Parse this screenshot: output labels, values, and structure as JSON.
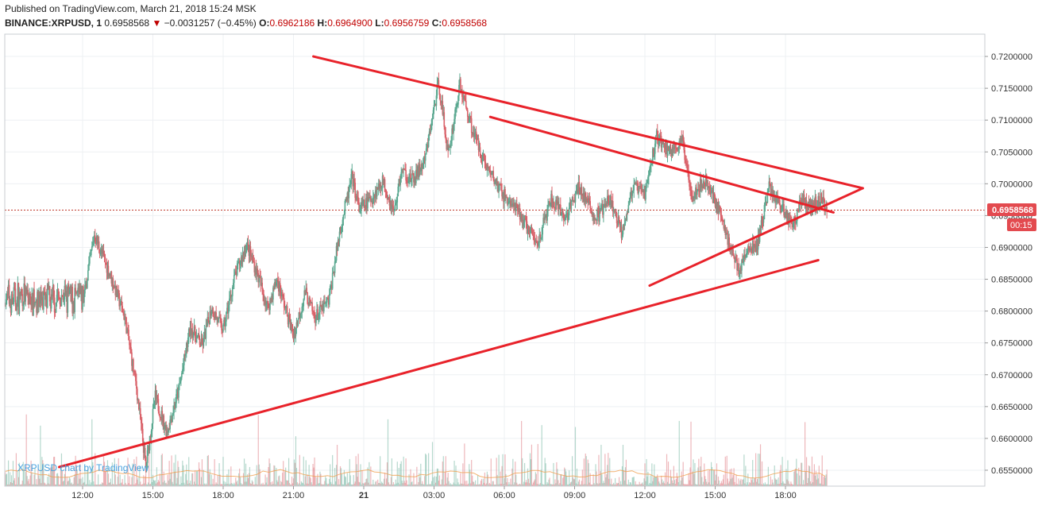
{
  "header": {
    "published": "Published on TradingView.com, March 21, 2018 15:24 MSK",
    "symbol": "BINANCE:XRPUSD, 1",
    "last": "0.6958568",
    "arrow": "▼",
    "change": "−0.0031257 (−0.45%)",
    "o_label": "O:",
    "o_value": "0.6962186",
    "h_label": "H:",
    "h_value": "0.6964900",
    "l_label": "L:",
    "l_value": "0.6956759",
    "c_label": "C:",
    "c_value": "0.6958568"
  },
  "watermark": "XRPUSD chart by TradingView",
  "price_tag": {
    "value": "0.6958568",
    "countdown": "00:15"
  },
  "colors": {
    "up": "#5aa890",
    "down": "#d96068",
    "trendline": "#e8222a",
    "grid": "#eef0f3",
    "price_line": "#c0392b",
    "tag_bg": "#e34a4f"
  },
  "chart_data": {
    "type": "candlestick",
    "ylim": [
      0.6525,
      0.7235
    ],
    "y_ticks": [
      "0.7200000",
      "0.7150000",
      "0.7100000",
      "0.7050000",
      "0.7000000",
      "0.6950000",
      "0.6900000",
      "0.6850000",
      "0.6800000",
      "0.6750000",
      "0.6700000",
      "0.6650000",
      "0.6600000",
      "0.6550000"
    ],
    "y_tick_values": [
      0.72,
      0.715,
      0.71,
      0.705,
      0.7,
      0.695,
      0.69,
      0.685,
      0.68,
      0.675,
      0.67,
      0.665,
      0.66,
      0.655
    ],
    "x_ticks": [
      "12:00",
      "15:00",
      "18:00",
      "21:00",
      "21",
      "03:00",
      "06:00",
      "09:00",
      "12:00",
      "15:00",
      "18:00"
    ],
    "price_path_hours": [
      0,
      0.5,
      1.2,
      1.8,
      2.3,
      2.7,
      3.1,
      3.6,
      4.1,
      4.6,
      5.1,
      5.5,
      6.0,
      6.5,
      7.0,
      7.4,
      7.9,
      8.3,
      9.0,
      9.5,
      9.9,
      10.5,
      11.0,
      11.5,
      11.8,
      12.3,
      12.8,
      13.3,
      13.6,
      14.1,
      14.6,
      15.2,
      15.6,
      16.1,
      16.6,
      17.2,
      17.9,
      18.6,
      19.4,
      20.0,
      20.6,
      21.2,
      21.9,
      22.5,
      23.0,
      23.5,
      24.0,
      24.5,
      25.0,
      25.6,
      26.0,
      26.6,
      27.1,
      27.6,
      28.0,
      28.4,
      28.8,
      29.3,
      29.8,
      30.3,
      30.7,
      31.1,
      31.5,
      31.8
    ],
    "price_path_values": [
      0.681,
      0.692,
      0.6855,
      0.679,
      0.668,
      0.6555,
      0.6665,
      0.661,
      0.6675,
      0.6775,
      0.6745,
      0.6805,
      0.677,
      0.6855,
      0.6905,
      0.6865,
      0.6805,
      0.685,
      0.676,
      0.683,
      0.679,
      0.6815,
      0.693,
      0.701,
      0.696,
      0.6975,
      0.7005,
      0.6955,
      0.702,
      0.7005,
      0.7035,
      0.716,
      0.7045,
      0.7155,
      0.709,
      0.703,
      0.6985,
      0.6955,
      0.6905,
      0.6975,
      0.6945,
      0.6995,
      0.6945,
      0.6975,
      0.6925,
      0.6995,
      0.6985,
      0.7075,
      0.705,
      0.7065,
      0.6985,
      0.7005,
      0.6965,
      0.6905,
      0.6865,
      0.6895,
      0.6905,
      0.6995,
      0.6965,
      0.6935,
      0.6975,
      0.6965,
      0.6975,
      0.6958568
    ],
    "trendlines": [
      {
        "from": {
          "hour": 9.85,
          "price": 0.72
        },
        "to": {
          "hour": 33.3,
          "price": 0.6993
        }
      },
      {
        "from": {
          "hour": 17.4,
          "price": 0.7105
        },
        "to": {
          "hour": 32.05,
          "price": 0.6955
        }
      },
      {
        "from": {
          "hour": -1.0,
          "price": 0.6555
        },
        "to": {
          "hour": 31.4,
          "price": 0.688
        }
      },
      {
        "from": {
          "hour": 24.2,
          "price": 0.684
        },
        "to": {
          "hour": 33.3,
          "price": 0.6993
        }
      }
    ],
    "last_price": 0.6958568
  }
}
